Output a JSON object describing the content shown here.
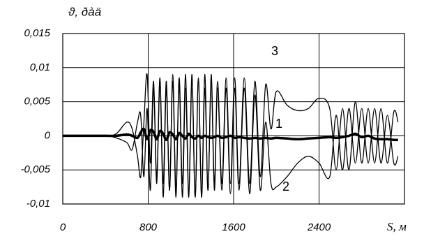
{
  "chart_data": {
    "type": "line",
    "title": "ϑ, ðàä",
    "x_label": "S, м",
    "x": [
      0,
      200,
      400,
      500,
      600,
      650,
      700,
      730,
      760,
      790,
      820,
      850,
      880,
      910,
      940,
      970,
      1000,
      1030,
      1060,
      1090,
      1120,
      1150,
      1180,
      1210,
      1240,
      1270,
      1300,
      1330,
      1360,
      1390,
      1420,
      1450,
      1490,
      1530,
      1570,
      1610,
      1650,
      1700,
      1750,
      1800,
      1850,
      1900,
      1950,
      2000,
      2100,
      2200,
      2300,
      2400,
      2500,
      2560,
      2620,
      2680,
      2740,
      2800,
      2860,
      2920,
      2980,
      3040,
      3100,
      3140
    ],
    "series": [
      {
        "name": "1",
        "color": "#000000",
        "values": [
          0,
          0,
          0,
          0,
          0.0002,
          0,
          -0.0003,
          0.0005,
          0.001,
          -0.0005,
          0.0008,
          0.0006,
          -0.0005,
          0.0007,
          0.0003,
          -0.0006,
          0.0005,
          0.0002,
          -0.0005,
          0.0004,
          0,
          -0.0004,
          0.0003,
          -0.0002,
          -0.0004,
          0,
          -0.0003,
          0,
          -0.0002,
          -0.0003,
          -0.0002,
          0,
          -0.0003,
          -0.0002,
          0,
          -0.0003,
          -0.0002,
          -0.0003,
          -0.0004,
          -0.0003,
          -0.0004,
          -0.0003,
          -0.0004,
          -0.0003,
          -0.0004,
          -0.0005,
          -0.0004,
          -0.0003,
          -0.0002,
          -0.0003,
          -0.0002,
          0,
          0.0003,
          -0.0002,
          0,
          -0.0004,
          -0.0005,
          -0.0005,
          -0.0006,
          -0.0006
        ]
      },
      {
        "name": "2",
        "color": "#000000",
        "values": [
          0,
          0,
          0,
          -0.0003,
          -0.001,
          -0.002,
          0.002,
          0.003,
          -0.006,
          0.004,
          -0.008,
          0.007,
          -0.007,
          0.008,
          -0.009,
          0.007,
          -0.008,
          0.009,
          -0.008,
          0.008,
          -0.009,
          0.007,
          -0.009,
          0.008,
          -0.009,
          0.008,
          -0.009,
          0.007,
          -0.008,
          0.008,
          -0.008,
          0.007,
          -0.008,
          0.007,
          -0.0085,
          0.007,
          -0.008,
          0.007,
          -0.0085,
          0.006,
          -0.008,
          0.002,
          -0.007,
          -0.0075,
          -0.006,
          -0.004,
          -0.003,
          -0.004,
          -0.006,
          0.003,
          -0.005,
          0.004,
          -0.004,
          0.004,
          -0.004,
          0.004,
          -0.004,
          0.003,
          -0.004,
          -0.003
        ]
      },
      {
        "name": "3",
        "color": "#000000",
        "values": [
          0,
          0,
          0,
          0.0003,
          0.002,
          0.001,
          -0.003,
          -0.006,
          0.002,
          0.009,
          -0.004,
          0.008,
          -0.006,
          0.0085,
          -0.007,
          0.008,
          -0.008,
          0.008,
          -0.009,
          0.0085,
          -0.007,
          0.009,
          -0.008,
          0.009,
          -0.009,
          0.0085,
          -0.009,
          0.009,
          -0.008,
          0.009,
          -0.007,
          0.008,
          -0.007,
          0.0085,
          -0.007,
          0.0085,
          -0.007,
          0.0085,
          -0.007,
          0.008,
          -0.006,
          0.0075,
          0.001,
          0.0065,
          0.0045,
          0.0037,
          0.004,
          0.0055,
          0.004,
          -0.005,
          0.004,
          -0.005,
          0.005,
          -0.004,
          0.004,
          -0.004,
          0.004,
          -0.004,
          0.0035,
          0.002
        ]
      }
    ],
    "xlim": [
      0,
      3200
    ],
    "xticks": [
      0,
      800,
      1600,
      2400
    ],
    "ylim": [
      -0.01,
      0.015
    ],
    "yticks": [
      {
        "value": -0.01,
        "label": "-0,01"
      },
      {
        "value": -0.005,
        "label": "-0,005"
      },
      0,
      {
        "value": 0.005,
        "label": "0,005"
      },
      {
        "value": 0.01,
        "label": "0,01"
      },
      {
        "value": 0.015,
        "label": "0,015"
      }
    ],
    "grid": true
  }
}
